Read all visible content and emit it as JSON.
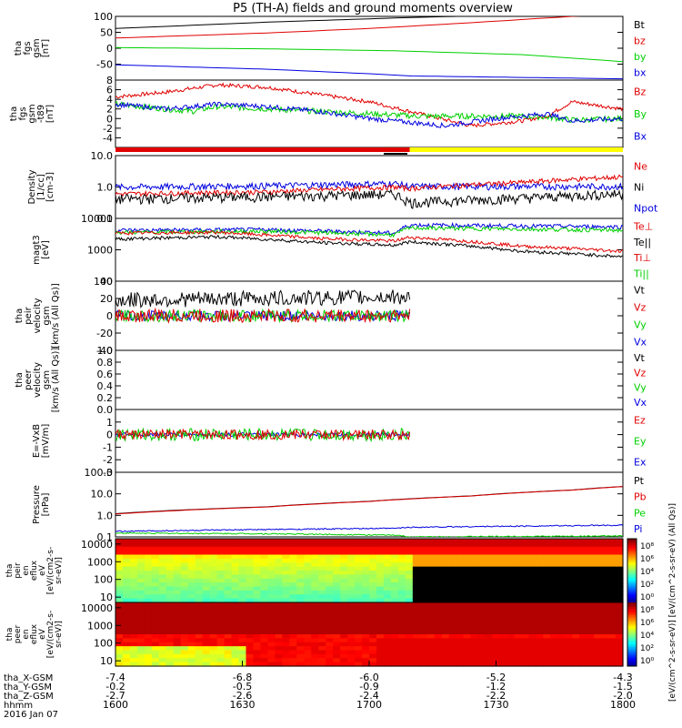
{
  "title": "P5 (TH-A) fields and ground moments overview",
  "colors": {
    "black": "#000000",
    "red": "#e00000",
    "green": "#00d000",
    "blue": "#0000e0",
    "yellow": "#ffff00"
  },
  "chart_data": {
    "type": "line",
    "x_ticks": [
      "1600",
      "1630",
      "1700",
      "1730",
      "1800"
    ],
    "x_label": "hhmm",
    "date": "2016 Jan 07",
    "orbit": {
      "labels": [
        "tha_X-GSM",
        "tha_Y-GSM",
        "tha_Z-GSM"
      ],
      "rows": [
        [
          "-7.4",
          "-6.8",
          "-6.0",
          "-5.2",
          "-4.3"
        ],
        [
          "-0.2",
          "-0.5",
          "-0.9",
          "-1.2",
          "-1.5"
        ],
        [
          "-2.7",
          "-2.6",
          "-2.4",
          "-2.2",
          "-2.0"
        ]
      ]
    },
    "panels": [
      {
        "ylabel": [
          "tha",
          "fgs",
          "gsm",
          "[nT]"
        ],
        "ymin": -100,
        "ymax": 100,
        "ticks": [
          "100",
          "50",
          "0",
          "-50"
        ],
        "legend": [
          [
            "Bt",
            "black"
          ],
          [
            "bz",
            "red"
          ],
          [
            "by",
            "green"
          ],
          [
            "bx",
            "blue"
          ]
        ],
        "series": [
          {
            "color": "black",
            "pts": [
              [
                0,
                62
              ],
              [
                0.3,
                82
              ],
              [
                0.55,
                95
              ],
              [
                0.72,
                102
              ],
              [
                1,
                112
              ]
            ]
          },
          {
            "color": "red",
            "pts": [
              [
                0,
                32
              ],
              [
                0.3,
                48
              ],
              [
                0.5,
                62
              ],
              [
                0.7,
                80
              ],
              [
                0.9,
                100
              ],
              [
                1,
                108
              ]
            ]
          },
          {
            "color": "green",
            "pts": [
              [
                0,
                2
              ],
              [
                0.3,
                -2
              ],
              [
                0.55,
                -8
              ],
              [
                0.8,
                -20
              ],
              [
                1,
                -42
              ]
            ]
          },
          {
            "color": "blue",
            "pts": [
              [
                0,
                -52
              ],
              [
                0.3,
                -66
              ],
              [
                0.5,
                -80
              ],
              [
                0.58,
                -87
              ],
              [
                1,
                -96
              ]
            ]
          }
        ]
      },
      {
        "ylabel": [
          "tha",
          "fgs",
          "gsm",
          "-t89",
          "[nT]"
        ],
        "ymin": -6,
        "ymax": 8,
        "ticks": [
          "8",
          "6",
          "4",
          "2",
          "0",
          "-2",
          "-4"
        ],
        "legend": [
          [
            "Bz",
            "red"
          ],
          [
            "By",
            "green"
          ],
          [
            "Bx",
            "blue"
          ]
        ],
        "series": [
          {
            "color": "red",
            "noise": 0.4,
            "pts": [
              [
                0,
                4.5
              ],
              [
                0.1,
                5.5
              ],
              [
                0.2,
                7
              ],
              [
                0.3,
                6.5
              ],
              [
                0.4,
                5
              ],
              [
                0.5,
                3.5
              ],
              [
                0.6,
                1
              ],
              [
                0.7,
                -1.5
              ],
              [
                0.8,
                -0.5
              ],
              [
                0.85,
                0.5
              ],
              [
                0.9,
                3.5
              ],
              [
                1,
                2
              ]
            ]
          },
          {
            "color": "green",
            "noise": 0.6,
            "pts": [
              [
                0,
                3
              ],
              [
                0.1,
                2
              ],
              [
                0.15,
                1.5
              ],
              [
                0.2,
                2.5
              ],
              [
                0.3,
                2
              ],
              [
                0.4,
                1.5
              ],
              [
                0.5,
                1
              ],
              [
                0.6,
                0.5
              ],
              [
                0.7,
                0.5
              ],
              [
                0.8,
                0.5
              ],
              [
                0.85,
                0.3
              ],
              [
                0.9,
                -0.3
              ],
              [
                1,
                0
              ]
            ]
          },
          {
            "color": "blue",
            "noise": 0.5,
            "pts": [
              [
                0,
                3
              ],
              [
                0.1,
                2
              ],
              [
                0.2,
                3
              ],
              [
                0.3,
                2.5
              ],
              [
                0.4,
                1.5
              ],
              [
                0.5,
                0
              ],
              [
                0.6,
                -1
              ],
              [
                0.65,
                -1.5
              ],
              [
                0.75,
                0
              ],
              [
                0.85,
                1
              ],
              [
                0.9,
                -0.5
              ],
              [
                1,
                0
              ]
            ]
          }
        ]
      },
      {
        "ylabel": [
          "Density",
          "[1/cc]",
          "[cm-3]"
        ],
        "ymin": 0.1,
        "ymax": 10,
        "log": true,
        "ticks": [
          "10.0",
          "1.0",
          "0.1"
        ],
        "tickvals": [
          10,
          1,
          0.1
        ],
        "legend": [
          [
            "Ne",
            "red"
          ],
          [
            "Ni",
            "black"
          ],
          [
            "Npot",
            "blue"
          ]
        ],
        "series": [
          {
            "color": "blue",
            "noise": 0.08,
            "pts": [
              [
                0,
                1.0
              ],
              [
                0.3,
                1.1
              ],
              [
                0.55,
                1.3
              ],
              [
                0.58,
                1.05
              ],
              [
                1,
                1.05
              ]
            ]
          },
          {
            "color": "red",
            "noise": 0.06,
            "pts": [
              [
                0,
                0.6
              ],
              [
                0.3,
                0.7
              ],
              [
                0.55,
                1.0
              ],
              [
                0.58,
                0.9
              ],
              [
                0.8,
                1.4
              ],
              [
                1,
                2.1
              ]
            ]
          },
          {
            "color": "black",
            "noise": 0.12,
            "pts": [
              [
                0,
                0.42
              ],
              [
                0.3,
                0.5
              ],
              [
                0.55,
                0.6
              ],
              [
                0.58,
                0.32
              ],
              [
                0.8,
                0.45
              ],
              [
                1,
                0.62
              ]
            ]
          }
        ]
      },
      {
        "ylabel": [
          "magt3",
          "[eV]"
        ],
        "ymin": 100,
        "ymax": 10000,
        "log": true,
        "ticks": [
          "10000",
          "1000",
          "100"
        ],
        "tickvals": [
          10000,
          1000,
          100
        ],
        "legend": [
          [
            "Te⊥",
            "red"
          ],
          [
            "Te||",
            "black"
          ],
          [
            "Ti⊥",
            "red"
          ],
          [
            "Ti||",
            "green"
          ]
        ],
        "series": [
          {
            "color": "blue",
            "noise": 0.05,
            "pts": [
              [
                0,
                4200
              ],
              [
                0.3,
                4400
              ],
              [
                0.55,
                3400
              ],
              [
                0.58,
                6200
              ],
              [
                1,
                5400
              ]
            ]
          },
          {
            "color": "green",
            "noise": 0.05,
            "pts": [
              [
                0,
                3600
              ],
              [
                0.3,
                3900
              ],
              [
                0.55,
                3000
              ],
              [
                0.58,
                5000
              ],
              [
                1,
                4200
              ]
            ]
          },
          {
            "color": "red",
            "noise": 0.04,
            "pts": [
              [
                0,
                3400
              ],
              [
                0.2,
                3600
              ],
              [
                0.4,
                2300
              ],
              [
                0.55,
                1900
              ],
              [
                0.58,
                2500
              ],
              [
                0.8,
                1300
              ],
              [
                1,
                900
              ]
            ]
          },
          {
            "color": "black",
            "noise": 0.04,
            "pts": [
              [
                0,
                2200
              ],
              [
                0.2,
                2600
              ],
              [
                0.4,
                1700
              ],
              [
                0.55,
                1400
              ],
              [
                0.58,
                1800
              ],
              [
                0.8,
                900
              ],
              [
                1,
                600
              ]
            ]
          }
        ]
      },
      {
        "ylabel": [
          "tha",
          "peir",
          "velocity",
          "gsm",
          "[km/s (All Qs)]"
        ],
        "ymin": -40,
        "ymax": 40,
        "ticks": [
          "40",
          "20",
          "0",
          "-20",
          "-40"
        ],
        "legend": [
          [
            "Vt",
            "black"
          ],
          [
            "Vz",
            "red"
          ],
          [
            "Vy",
            "green"
          ],
          [
            "Vx",
            "blue"
          ]
        ],
        "series": [
          {
            "color": "black",
            "noise": 9,
            "end": 0.58,
            "pts": [
              [
                0,
                18
              ],
              [
                0.58,
                22
              ]
            ]
          },
          {
            "color": "blue",
            "noise": 6,
            "end": 0.58,
            "pts": [
              [
                0,
                0
              ],
              [
                0.58,
                0
              ]
            ]
          },
          {
            "color": "green",
            "noise": 7,
            "end": 0.58,
            "pts": [
              [
                0,
                0
              ],
              [
                0.58,
                0
              ]
            ]
          },
          {
            "color": "red",
            "noise": 8,
            "end": 0.58,
            "pts": [
              [
                0,
                0
              ],
              [
                0.58,
                0
              ]
            ]
          }
        ]
      },
      {
        "ylabel": [
          "tha",
          "peer",
          "velocity",
          "gsm",
          "[km/s (All Qs)]"
        ],
        "ymin": 0,
        "ymax": 1,
        "ticks": [
          "1.0",
          "0.8",
          "0.6",
          "0.4",
          "0.2",
          "0.0"
        ],
        "legend": [
          [
            "Vt",
            "black"
          ],
          [
            "Vz",
            "red"
          ],
          [
            "Vy",
            "green"
          ],
          [
            "Vx",
            "blue"
          ]
        ],
        "series": []
      },
      {
        "ylabel": [
          "E=-VxB",
          "[mV/m]"
        ],
        "ymin": -3,
        "ymax": 2,
        "ticks": [
          "1",
          "0",
          "-1",
          "-2",
          "-3"
        ],
        "legend": [
          [
            "Ez",
            "red"
          ],
          [
            "Ey",
            "green"
          ],
          [
            "Ex",
            "blue"
          ]
        ],
        "series": [
          {
            "color": "blue",
            "noise": 0.15,
            "end": 0.58,
            "pts": [
              [
                0,
                0
              ],
              [
                0.58,
                0
              ]
            ]
          },
          {
            "color": "green",
            "noise": 0.5,
            "end": 0.58,
            "pts": [
              [
                0,
                0
              ],
              [
                0.58,
                0
              ]
            ]
          },
          {
            "color": "red",
            "noise": 0.4,
            "end": 0.58,
            "pts": [
              [
                0,
                0
              ],
              [
                0.58,
                0
              ]
            ]
          }
        ]
      },
      {
        "ylabel": [
          "Pressure",
          "[nPa]"
        ],
        "ymin": 0.1,
        "ymax": 100,
        "log": true,
        "ticks": [
          "100.0",
          "10.0",
          "1.0",
          "0.1"
        ],
        "tickvals": [
          100,
          10,
          1,
          0.1
        ],
        "legend": [
          [
            "Pt",
            "black"
          ],
          [
            "Pb",
            "red"
          ],
          [
            "Pe",
            "green"
          ],
          [
            "Pi",
            "blue"
          ]
        ],
        "series": [
          {
            "color": "black",
            "pts": [
              [
                0,
                1.2
              ],
              [
                0.3,
                2.5
              ],
              [
                0.5,
                4.5
              ],
              [
                0.7,
                8
              ],
              [
                0.9,
                15
              ],
              [
                1,
                22
              ]
            ]
          },
          {
            "color": "red",
            "pts": [
              [
                0,
                1.15
              ],
              [
                0.3,
                2.45
              ],
              [
                0.5,
                4.4
              ],
              [
                0.7,
                7.9
              ],
              [
                0.9,
                14.8
              ],
              [
                1,
                21.5
              ]
            ]
          },
          {
            "color": "green",
            "noise": 0.02,
            "pts": [
              [
                0,
                0.15
              ],
              [
                0.3,
                0.14
              ],
              [
                0.55,
                0.12
              ],
              [
                0.58,
                0.1
              ],
              [
                1,
                0.11
              ]
            ]
          },
          {
            "color": "blue",
            "noise": 0.02,
            "pts": [
              [
                0,
                0.18
              ],
              [
                0.3,
                0.22
              ],
              [
                0.55,
                0.25
              ],
              [
                0.58,
                0.28
              ],
              [
                1,
                0.35
              ]
            ]
          }
        ]
      }
    ],
    "spectra": [
      {
        "ylabel": [
          "tha",
          "peir",
          "en",
          "eflux",
          "eV",
          "[eV/(cm2-s-",
          "sr-eV)]"
        ],
        "ymin": 5,
        "ymax": 20000,
        "ticks": [
          "10000",
          "1000",
          "100",
          "10"
        ],
        "tickvals": [
          10000,
          1000,
          100,
          10
        ]
      },
      {
        "ylabel": [
          "tha",
          "peer",
          "en",
          "eflux",
          "eV",
          "[eV/(cm2-s-",
          "sr-eV)]"
        ],
        "ymin": 5,
        "ymax": 20000,
        "ticks": [
          "10000",
          "1000",
          "100",
          "10"
        ],
        "tickvals": [
          10000,
          1000,
          100,
          10
        ]
      }
    ],
    "colorbar": {
      "ticks": [
        "10⁸",
        "10⁶",
        "10⁴",
        "10²",
        "10⁰",
        "10⁸",
        "10⁶",
        "10⁴",
        "10²",
        "10⁰"
      ],
      "label": "[eV/(cm^2-s-sr-eV)] [eV/(cm^2-s-sr-eV) (All Qs)]"
    }
  }
}
